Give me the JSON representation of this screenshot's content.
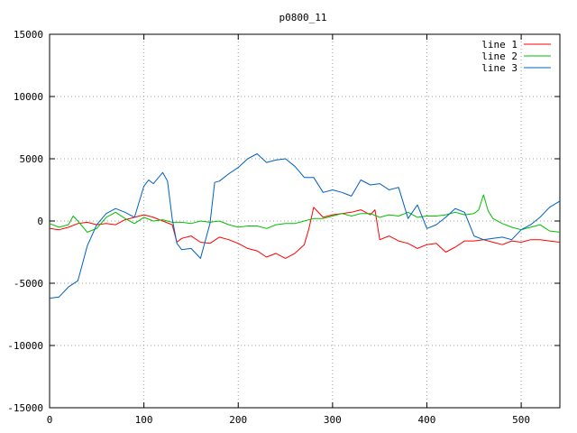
{
  "chart_data": {
    "type": "line",
    "title": "p0800_11",
    "xlabel": "",
    "ylabel": "",
    "xlim": [
      0,
      541
    ],
    "ylim": [
      -15000,
      15000
    ],
    "x_ticks": [
      "0",
      "100",
      "200",
      "300",
      "400",
      "500"
    ],
    "x_tick_values": [
      0,
      100,
      200,
      300,
      400,
      500
    ],
    "y_ticks": [
      "15000",
      "10000",
      "5000",
      "0",
      "-5000",
      "-10000",
      "-15000"
    ],
    "y_tick_values": [
      15000,
      10000,
      5000,
      0,
      -5000,
      -10000,
      -15000
    ],
    "grid": true,
    "legend_position": "top-right",
    "series": [
      {
        "name": "line 1",
        "color": "#ff0000",
        "x": [
          0,
          10,
          20,
          30,
          40,
          50,
          60,
          70,
          80,
          90,
          100,
          110,
          120,
          130,
          135,
          140,
          150,
          160,
          170,
          180,
          190,
          200,
          210,
          220,
          230,
          240,
          250,
          260,
          270,
          275,
          280,
          290,
          300,
          310,
          320,
          330,
          340,
          345,
          350,
          360,
          370,
          380,
          390,
          400,
          410,
          420,
          430,
          440,
          450,
          460,
          470,
          480,
          490,
          500,
          510,
          520,
          530,
          541
        ],
        "y": [
          -600,
          -700,
          -500,
          -200,
          -100,
          -300,
          -200,
          -300,
          100,
          300,
          500,
          300,
          0,
          -300,
          -1700,
          -1400,
          -1200,
          -1700,
          -1800,
          -1300,
          -1500,
          -1800,
          -2200,
          -2400,
          -2900,
          -2600,
          -3000,
          -2600,
          -1900,
          -600,
          1100,
          300,
          500,
          600,
          700,
          900,
          500,
          900,
          -1500,
          -1200,
          -1600,
          -1800,
          -2200,
          -1900,
          -1800,
          -2500,
          -2100,
          -1600,
          -1600,
          -1500,
          -1700,
          -1900,
          -1600,
          -1700,
          -1500,
          -1500,
          -1600,
          -1700
        ]
      },
      {
        "name": "line 2",
        "color": "#00c000",
        "x": [
          0,
          10,
          20,
          25,
          30,
          40,
          50,
          60,
          70,
          80,
          90,
          100,
          110,
          120,
          130,
          140,
          150,
          160,
          170,
          180,
          190,
          200,
          210,
          220,
          230,
          240,
          250,
          260,
          270,
          280,
          290,
          300,
          310,
          320,
          330,
          340,
          350,
          360,
          370,
          380,
          390,
          400,
          410,
          420,
          430,
          440,
          450,
          455,
          460,
          465,
          470,
          480,
          490,
          500,
          510,
          520,
          530,
          541
        ],
        "y": [
          -200,
          -500,
          -300,
          400,
          0,
          -900,
          -600,
          300,
          700,
          200,
          -200,
          300,
          0,
          100,
          -100,
          -100,
          -200,
          0,
          -100,
          0,
          -300,
          -500,
          -400,
          -400,
          -600,
          -300,
          -200,
          -200,
          0,
          200,
          200,
          400,
          600,
          400,
          600,
          600,
          300,
          500,
          400,
          700,
          300,
          400,
          400,
          500,
          700,
          500,
          600,
          900,
          2100,
          800,
          200,
          -200,
          -500,
          -700,
          -500,
          -300,
          -800,
          -900
        ]
      },
      {
        "name": "line 3",
        "color": "#0060c0",
        "x": [
          0,
          10,
          20,
          30,
          40,
          50,
          60,
          70,
          80,
          90,
          100,
          105,
          110,
          120,
          125,
          130,
          135,
          140,
          150,
          160,
          170,
          175,
          180,
          190,
          200,
          210,
          220,
          230,
          240,
          250,
          260,
          270,
          280,
          290,
          300,
          310,
          320,
          330,
          340,
          350,
          360,
          370,
          380,
          390,
          400,
          410,
          420,
          430,
          440,
          450,
          460,
          470,
          480,
          490,
          500,
          510,
          520,
          530,
          541
        ],
        "y": [
          -6200,
          -6100,
          -5300,
          -4800,
          -2000,
          -300,
          600,
          1000,
          700,
          300,
          2800,
          3300,
          3000,
          3900,
          3200,
          200,
          -1800,
          -2300,
          -2200,
          -3000,
          -200,
          3100,
          3200,
          3800,
          4300,
          5000,
          5400,
          4700,
          4900,
          5000,
          4400,
          3500,
          3500,
          2300,
          2500,
          2300,
          2000,
          3300,
          2900,
          3000,
          2500,
          2700,
          200,
          1300,
          -600,
          -300,
          300,
          1000,
          700,
          -1200,
          -1500,
          -1400,
          -1300,
          -1500,
          -700,
          -300,
          300,
          1100,
          1600
        ]
      }
    ]
  }
}
